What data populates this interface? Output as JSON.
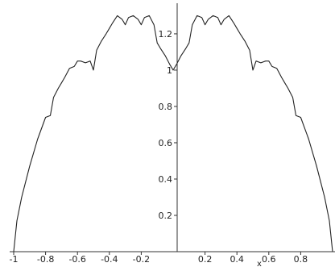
{
  "chart_data": {
    "type": "line",
    "title": "",
    "xlabel": "x",
    "ylabel": "",
    "xlim": [
      -1,
      1
    ],
    "ylim": [
      0,
      1.333
    ],
    "grid": false,
    "legend": "none",
    "line_color": "#222222",
    "axis_color": "#333333",
    "x_ticks": [
      {
        "value": -1,
        "label": "-1"
      },
      {
        "value": -0.8,
        "label": "-0.8"
      },
      {
        "value": -0.6,
        "label": "-0.6"
      },
      {
        "value": -0.4,
        "label": "-0.4"
      },
      {
        "value": -0.2,
        "label": "-0.2"
      },
      {
        "value": 0.2,
        "label": "0.2"
      },
      {
        "value": 0.4,
        "label": "0.4"
      },
      {
        "value": 0.6,
        "label": "0.6"
      },
      {
        "value": 0.8,
        "label": "0.8"
      }
    ],
    "y_ticks": [
      {
        "value": 0.2,
        "label": "0.2"
      },
      {
        "value": 0.4,
        "label": "0.4"
      },
      {
        "value": 0.6,
        "label": "0.6"
      },
      {
        "value": 0.8,
        "label": "0.8"
      },
      {
        "value": 1,
        "label": "1"
      },
      {
        "value": 1.2,
        "label": "1.2"
      }
    ],
    "series": [
      {
        "x": [
          -1,
          -0.98,
          -0.95,
          -0.9,
          -0.85,
          -0.8,
          -0.77,
          -0.75,
          -0.72,
          -0.7,
          -0.68,
          -0.65,
          -0.62,
          -0.6,
          -0.58,
          -0.55,
          -0.52,
          -0.5,
          -0.48,
          -0.45,
          -0.42,
          -0.4,
          -0.38,
          -0.35,
          -0.32,
          -0.3,
          -0.28,
          -0.25,
          -0.22,
          -0.2,
          -0.18,
          -0.15,
          -0.12,
          -0.1,
          -0.08,
          -0.05,
          -0.02,
          0,
          0.02,
          0.05,
          0.08,
          0.1,
          0.12,
          0.15,
          0.18,
          0.2,
          0.22,
          0.25,
          0.28,
          0.3,
          0.32,
          0.35,
          0.38,
          0.4,
          0.42,
          0.45,
          0.48,
          0.5,
          0.52,
          0.55,
          0.58,
          0.6,
          0.62,
          0.65,
          0.68,
          0.7,
          0.72,
          0.75,
          0.77,
          0.8,
          0.85,
          0.9,
          0.95,
          0.98,
          1
        ],
        "y": [
          0,
          0.17,
          0.3,
          0.47,
          0.62,
          0.74,
          0.75,
          0.85,
          0.9,
          0.93,
          0.96,
          1.01,
          1.02,
          1.05,
          1.05,
          1.04,
          1.05,
          1,
          1.11,
          1.16,
          1.2,
          1.23,
          1.26,
          1.3,
          1.28,
          1.25,
          1.29,
          1.3,
          1.28,
          1.25,
          1.29,
          1.3,
          1.25,
          1.15,
          1.12,
          1.08,
          1.03,
          1,
          1.03,
          1.08,
          1.12,
          1.15,
          1.25,
          1.3,
          1.29,
          1.25,
          1.28,
          1.3,
          1.29,
          1.25,
          1.28,
          1.3,
          1.26,
          1.23,
          1.2,
          1.16,
          1.11,
          1,
          1.05,
          1.04,
          1.05,
          1.05,
          1.02,
          1.01,
          0.96,
          0.93,
          0.9,
          0.85,
          0.75,
          0.74,
          0.62,
          0.47,
          0.3,
          0.17,
          0
        ]
      }
    ]
  }
}
